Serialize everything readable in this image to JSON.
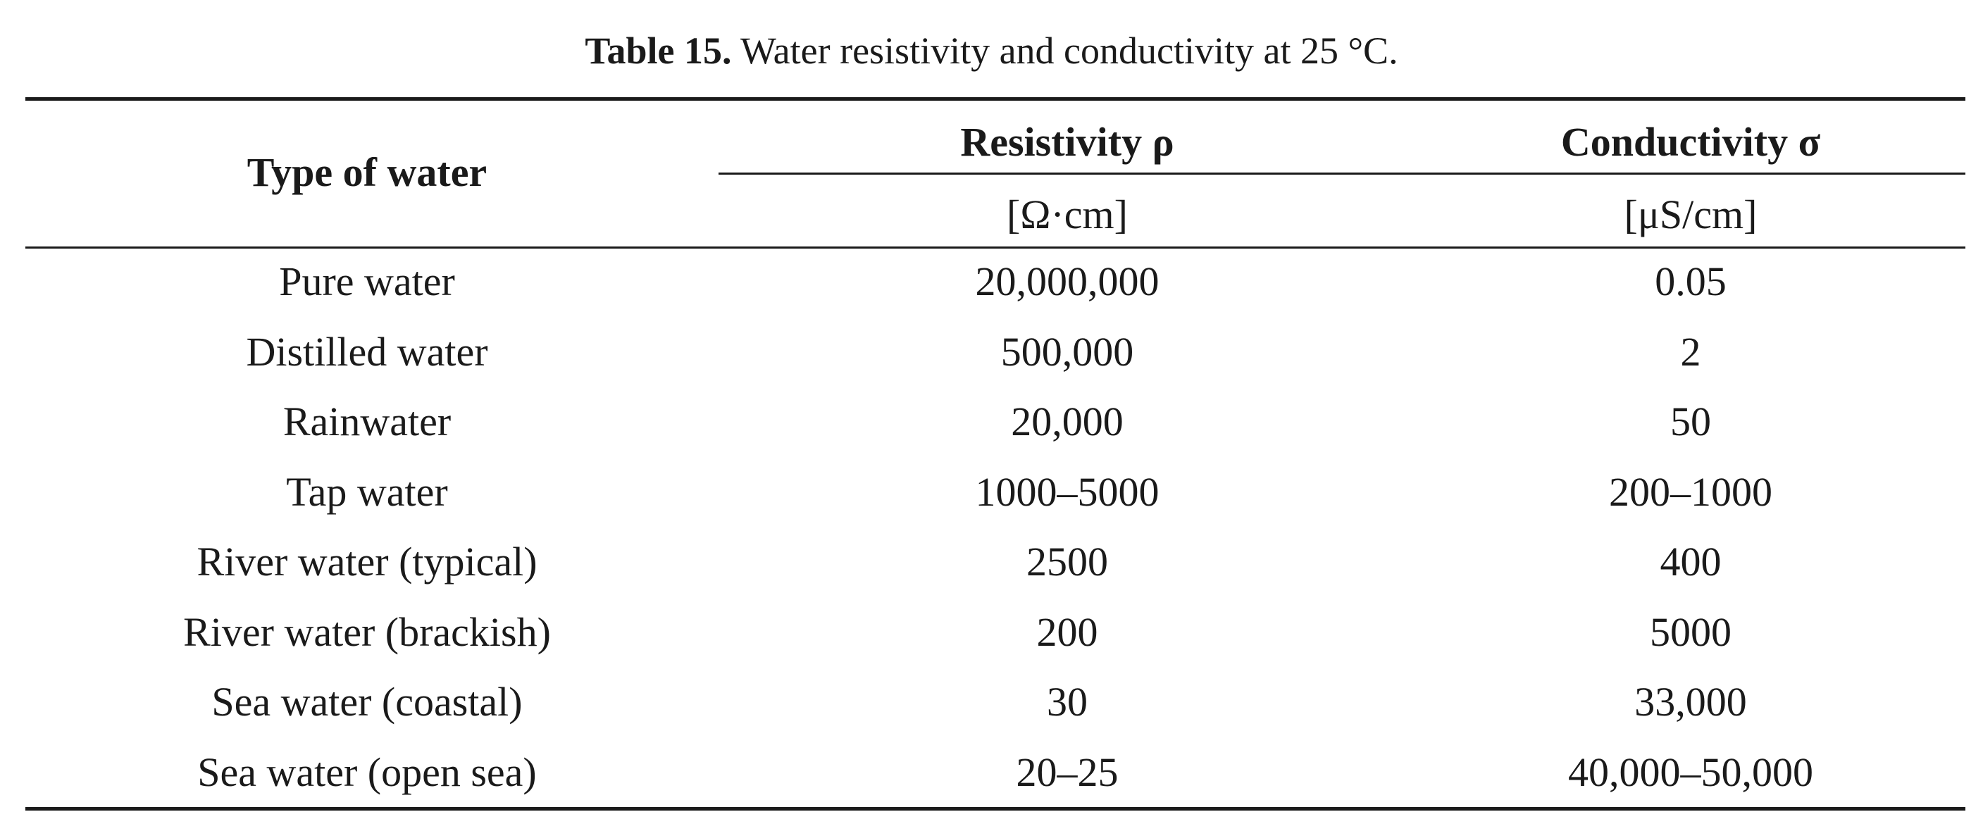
{
  "table_caption": {
    "label": "Table 15.",
    "text": "Water resistivity and conductivity at 25 °C."
  },
  "table": {
    "header": {
      "first": "Type of water",
      "columns": [
        {
          "name": "Resistivity ρ",
          "unit": "[Ω·cm]"
        },
        {
          "name": "Conductivity σ",
          "unit": "[μS/cm]"
        }
      ]
    },
    "rows": [
      [
        "Pure water",
        "20,000,000",
        "0.05"
      ],
      [
        "Distilled water",
        "500,000",
        "2"
      ],
      [
        "Rainwater",
        "20,000",
        "50"
      ],
      [
        "Tap water",
        "1000–5000",
        "200–1000"
      ],
      [
        "River water (typical)",
        "2500",
        "400"
      ],
      [
        "River water (brackish)",
        "200",
        "5000"
      ],
      [
        "Sea water (coastal)",
        "30",
        "33,000"
      ],
      [
        "Sea water (open sea)",
        "20–25",
        "40,000–50,000"
      ]
    ]
  }
}
